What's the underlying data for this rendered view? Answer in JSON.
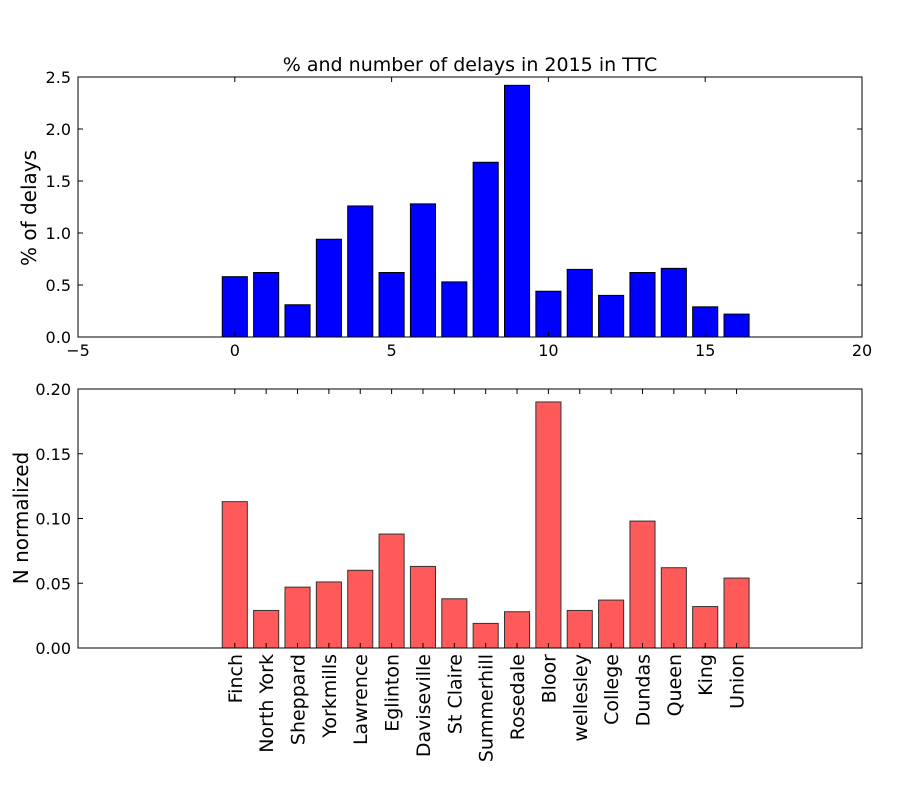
{
  "charts": [
    {
      "title": "% and number of delays in 2015 in TTC",
      "ylabel": "% of delays",
      "xlabel": "",
      "bar_color": "#0000ff",
      "x_ticks": [
        "−5",
        "0",
        "5",
        "10",
        "15",
        "20"
      ],
      "y_ticks": [
        "0.0",
        "0.5",
        "1.0",
        "1.5",
        "2.0",
        "2.5"
      ]
    },
    {
      "title": "",
      "ylabel": "N normalized",
      "xlabel": "",
      "bar_color": "#ff5a5a",
      "y_ticks": [
        "0.00",
        "0.05",
        "0.10",
        "0.15",
        "0.20"
      ]
    }
  ],
  "chart_data": [
    {
      "type": "bar",
      "title": "% and number of delays in 2015 in TTC",
      "xlabel": "",
      "ylabel": "% of delays",
      "x": [
        0,
        1,
        2,
        3,
        4,
        5,
        6,
        7,
        8,
        9,
        10,
        11,
        12,
        13,
        14,
        15,
        16
      ],
      "values": [
        0.58,
        0.62,
        0.31,
        0.94,
        1.26,
        0.62,
        1.28,
        0.53,
        1.68,
        2.42,
        0.44,
        0.65,
        0.4,
        0.62,
        0.66,
        0.29,
        0.22
      ],
      "xlim": [
        -5,
        20
      ],
      "ylim": [
        0,
        2.5
      ],
      "x_ticks": [
        -5,
        0,
        5,
        10,
        15,
        20
      ],
      "y_ticks": [
        0.0,
        0.5,
        1.0,
        1.5,
        2.0,
        2.5
      ],
      "grid": false,
      "color": "#0000ff"
    },
    {
      "type": "bar",
      "title": "",
      "xlabel": "",
      "ylabel": "N normalized",
      "categories": [
        "Finch",
        "North York",
        "Sheppard",
        "Yorkmills",
        "Lawrence",
        "Eglinton",
        "Daviseville",
        "St Claire",
        "Summerhill",
        "Rosedale",
        "Bloor",
        "wellesley",
        "College",
        "Dundas",
        "Queen",
        "King",
        "Union"
      ],
      "values": [
        0.113,
        0.029,
        0.047,
        0.051,
        0.06,
        0.088,
        0.063,
        0.038,
        0.019,
        0.028,
        0.19,
        0.029,
        0.037,
        0.098,
        0.062,
        0.032,
        0.054
      ],
      "xlim": [
        -5,
        20
      ],
      "ylim": [
        0,
        0.2
      ],
      "y_ticks": [
        0.0,
        0.05,
        0.1,
        0.15,
        0.2
      ],
      "grid": false,
      "color": "#ff5a5a"
    }
  ]
}
